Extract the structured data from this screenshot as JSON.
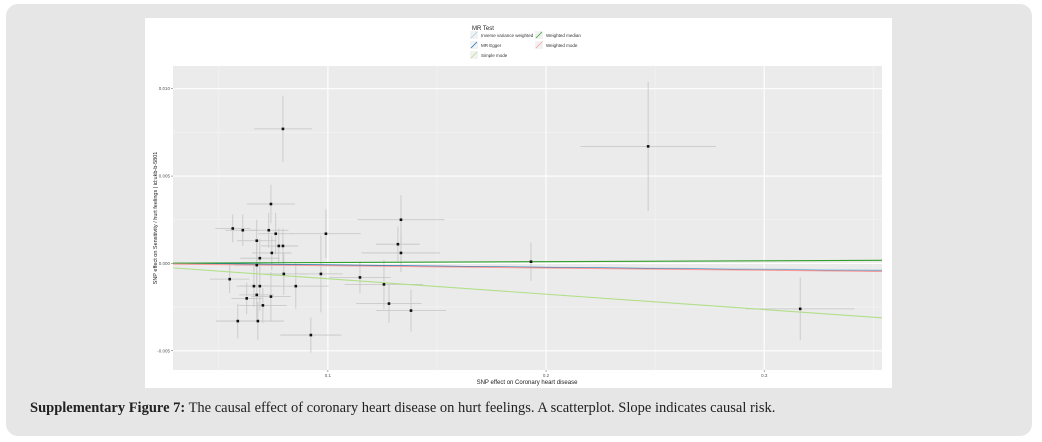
{
  "caption": {
    "label": "Supplementary Figure 7:",
    "text": " The causal effect of coronary heart disease on hurt feelings. A scatterplot. Slope indicates causal risk."
  },
  "chart_data": {
    "type": "scatter",
    "xlabel": "SNP effect on Coronary heart disease",
    "ylabel": "SNP effect on Sensitivity / hurt feelings | id:ukb-b-5801",
    "xlim": [
      0.029,
      0.354
    ],
    "ylim": [
      -0.0061,
      0.0113
    ],
    "x_ticks": [
      {
        "value": 0.1,
        "label": "0.1"
      },
      {
        "value": 0.2,
        "label": "0.2"
      },
      {
        "value": 0.3,
        "label": "0.3"
      }
    ],
    "y_ticks": [
      {
        "value": 0.01,
        "label": "0.010"
      },
      {
        "value": 0.005,
        "label": "0.005"
      },
      {
        "value": 0.0,
        "label": "0.000"
      },
      {
        "value": -0.005,
        "label": "-0.005"
      }
    ],
    "grid": true,
    "background": "#ebebeb",
    "legend": {
      "title": "MR Test",
      "position": "top",
      "entries": [
        {
          "name": "Inverse variance weighted",
          "color": "#a6cee3"
        },
        {
          "name": "MR Egger",
          "color": "#1f78b4"
        },
        {
          "name": "Simple mode",
          "color": "#b2df8a"
        },
        {
          "name": "Weighted median",
          "color": "#33a02c"
        },
        {
          "name": "Weighted mode",
          "color": "#fb9a99"
        }
      ]
    },
    "lines": [
      {
        "name": "Inverse variance weighted",
        "slope": -0.0011,
        "intercept": 0
      },
      {
        "name": "MR Egger",
        "slope": -0.0014,
        "intercept": 5e-05
      },
      {
        "name": "Simple mode",
        "slope": -0.0088,
        "intercept": 0
      },
      {
        "name": "Weighted median",
        "slope": 0.0005,
        "intercept": 0
      },
      {
        "name": "Weighted mode",
        "slope": -0.0013,
        "intercept": 0
      }
    ],
    "points_format": [
      "x",
      "y",
      "x_err",
      "y_err"
    ],
    "points": [
      [
        0.0794,
        0.0077,
        0.0133,
        0.0019
      ],
      [
        0.2468,
        0.0067,
        0.031,
        0.0037
      ],
      [
        0.1931,
        0.0001,
        0.009,
        0.0011
      ],
      [
        0.3165,
        -0.0026,
        0.025,
        0.0018
      ],
      [
        0.0739,
        0.0034,
        0.011,
        0.0011
      ],
      [
        0.0564,
        0.002,
        0.008,
        0.0008
      ],
      [
        0.061,
        0.0019,
        0.008,
        0.0009
      ],
      [
        0.0729,
        0.0019,
        0.009,
        0.001
      ],
      [
        0.0761,
        0.0017,
        0.008,
        0.0012
      ],
      [
        0.0991,
        0.0017,
        0.016,
        0.0014
      ],
      [
        0.0674,
        0.0013,
        0.009,
        0.0012
      ],
      [
        0.0775,
        0.001,
        0.008,
        0.001
      ],
      [
        0.0794,
        0.001,
        0.007,
        0.001
      ],
      [
        0.0743,
        0.0006,
        0.009,
        0.001
      ],
      [
        0.0688,
        0.0003,
        0.009,
        0.0011
      ],
      [
        0.0674,
        -0.0001,
        0.01,
        0.0013
      ],
      [
        0.0798,
        -0.0006,
        0.011,
        0.0012
      ],
      [
        0.0968,
        -0.0006,
        0.01,
        0.0022
      ],
      [
        0.055,
        -0.0009,
        0.009,
        0.0008
      ],
      [
        0.0661,
        -0.0013,
        0.008,
        0.0012
      ],
      [
        0.0688,
        -0.0013,
        0.009,
        0.0014
      ],
      [
        0.0853,
        -0.0013,
        0.015,
        0.0013
      ],
      [
        0.0674,
        -0.0018,
        0.008,
        0.0014
      ],
      [
        0.0628,
        -0.002,
        0.007,
        0.0009
      ],
      [
        0.0739,
        -0.0019,
        0.009,
        0.0014
      ],
      [
        0.0702,
        -0.0024,
        0.011,
        0.001
      ],
      [
        0.0587,
        -0.0033,
        0.01,
        0.001
      ],
      [
        0.0679,
        -0.0033,
        0.012,
        0.0011
      ],
      [
        0.0922,
        -0.0041,
        0.014,
        0.001
      ],
      [
        0.1335,
        0.0025,
        0.02,
        0.0014
      ],
      [
        0.1321,
        0.0011,
        0.01,
        0.001
      ],
      [
        0.1335,
        0.0006,
        0.018,
        0.0011
      ],
      [
        0.1147,
        -0.0008,
        0.014,
        0.0009
      ],
      [
        0.1257,
        -0.0012,
        0.018,
        0.0014
      ],
      [
        0.128,
        -0.0023,
        0.015,
        0.0011
      ],
      [
        0.1381,
        -0.0027,
        0.016,
        0.0012
      ]
    ]
  }
}
